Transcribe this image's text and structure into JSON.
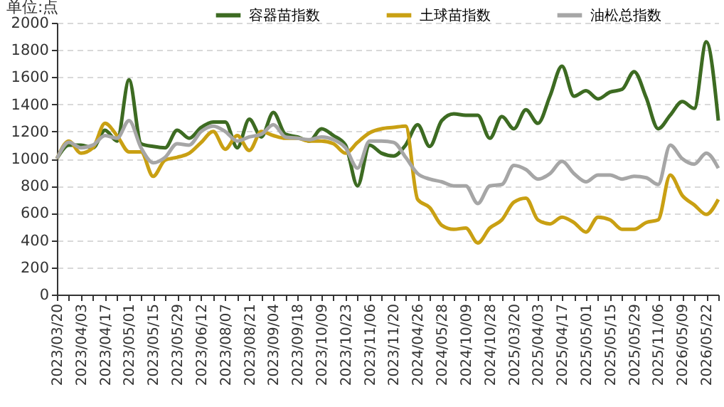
{
  "chart_data": {
    "type": "line",
    "ylabel": "单位:点",
    "categories": [
      "2023/03/20",
      null,
      "2023/04/03",
      null,
      "2023/04/17",
      null,
      "2023/05/01",
      null,
      "2023/05/15",
      null,
      "2023/05/29",
      null,
      "2023/06/12",
      null,
      "2023/08/07",
      null,
      "2023/08/21",
      null,
      "2023/09/04",
      null,
      "2023/09/18",
      null,
      "2023/10/09",
      null,
      "2023/10/23",
      null,
      "2023/11/06",
      null,
      "2023/11/20",
      null,
      "2024/04/26",
      null,
      "2024/05/28",
      null,
      "2024/10/09",
      null,
      "2024/10/28",
      null,
      "2025/03/20",
      null,
      "2025/04/03",
      null,
      "2025/04/17",
      null,
      "2025/05/01",
      null,
      "2025/05/15",
      null,
      "2025/05/29",
      null,
      "2025/11/06",
      null,
      "2026/05/09",
      null,
      "2026/05/22",
      null
    ],
    "series": [
      {
        "name": "容器苗指数",
        "color": "#3d6b22",
        "values": [
          1000,
          1100,
          1100,
          1080,
          1210,
          1130,
          1580,
          1110,
          1090,
          1080,
          1210,
          1150,
          1230,
          1270,
          1270,
          1080,
          1290,
          1160,
          1340,
          1180,
          1160,
          1130,
          1220,
          1170,
          1100,
          800,
          1100,
          1040,
          1020,
          1100,
          1250,
          1090,
          1280,
          1330,
          1320,
          1320,
          1150,
          1310,
          1220,
          1360,
          1260,
          1460,
          1680,
          1460,
          1500,
          1440,
          1490,
          1510,
          1640,
          1450,
          1220,
          1320,
          1420,
          1370,
          1860,
          1280
        ]
      },
      {
        "name": "土球苗指数",
        "color": "#c9a013",
        "values": [
          1000,
          1130,
          1040,
          1080,
          1260,
          1170,
          1050,
          1050,
          870,
          990,
          1010,
          1040,
          1120,
          1200,
          1070,
          1170,
          1060,
          1200,
          1170,
          1150,
          1150,
          1130,
          1130,
          1110,
          1040,
          1120,
          1190,
          1220,
          1230,
          1240,
          700,
          640,
          510,
          480,
          490,
          380,
          490,
          550,
          680,
          710,
          550,
          520,
          570,
          530,
          460,
          570,
          550,
          480,
          480,
          530,
          550,
          880,
          730,
          660,
          590,
          700
        ]
      },
      {
        "name": "油松总指数",
        "color": "#a6a6a6",
        "values": [
          1000,
          1120,
          1080,
          1100,
          1170,
          1150,
          1280,
          1080,
          970,
          1010,
          1110,
          1100,
          1200,
          1240,
          1200,
          1130,
          1160,
          1180,
          1250,
          1160,
          1150,
          1140,
          1160,
          1140,
          1080,
          930,
          1130,
          1130,
          1120,
          1010,
          890,
          850,
          830,
          800,
          800,
          670,
          800,
          810,
          950,
          920,
          850,
          890,
          980,
          890,
          830,
          880,
          880,
          850,
          870,
          860,
          810,
          1100,
          1000,
          960,
          1040,
          930
        ]
      }
    ],
    "ylim": [
      0,
      2000
    ],
    "yticks": [
      0,
      200,
      400,
      600,
      800,
      1000,
      1200,
      1400,
      1600,
      1800,
      2000
    ],
    "grid": "y",
    "legend": "top",
    "line_style": "solid",
    "marker": "none"
  }
}
